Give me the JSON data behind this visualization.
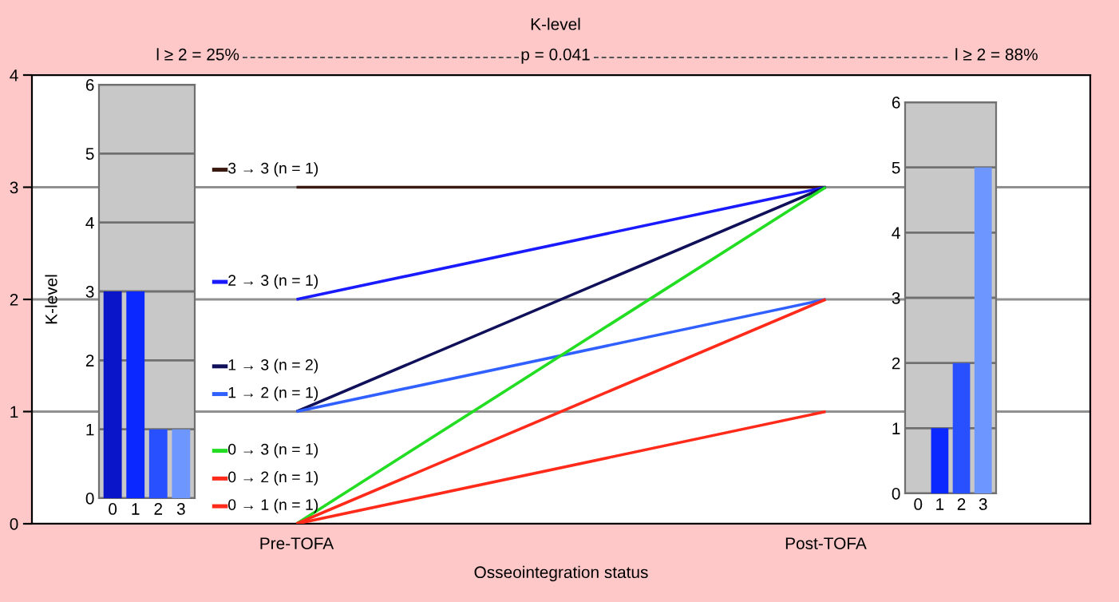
{
  "chart_data": [
    {
      "type": "line",
      "title": "K-level",
      "xlabel": "Osseointegration status",
      "ylabel": "K-level",
      "categories": [
        "Pre-TOFA",
        "Post-TOFA"
      ],
      "series": [
        {
          "name": "3 → 3 (n = 1)",
          "color": "#3a1a10",
          "values": [
            3,
            3
          ]
        },
        {
          "name": "2 → 3 (n = 1)",
          "color": "#1a1aff",
          "values": [
            2,
            3
          ]
        },
        {
          "name": "1 → 3 (n = 2)",
          "color": "#10105a",
          "values": [
            1,
            3
          ]
        },
        {
          "name": "1 → 2 (n = 1)",
          "color": "#3060ff",
          "values": [
            1,
            2
          ]
        },
        {
          "name": "0 → 3 (n = 1)",
          "color": "#22dd22",
          "values": [
            0,
            3
          ]
        },
        {
          "name": "0 → 2 (n = 1)",
          "color": "#ff2a1a",
          "values": [
            0,
            2
          ]
        },
        {
          "name": "0 → 1 (n = 1)",
          "color": "#ff2a1a",
          "values": [
            0,
            1
          ]
        }
      ],
      "ylim": [
        0,
        4
      ],
      "yticks": [
        0,
        1,
        2,
        3,
        4
      ],
      "grid": "y",
      "marker": "none",
      "line_style": "solid",
      "legend": "left",
      "annotations": [
        "l ≥ 2 = 25%",
        "p = 0.041",
        "l ≥ 2 = 88%"
      ]
    },
    {
      "type": "bar",
      "categories": [
        "0",
        "1",
        "2",
        "3"
      ],
      "values": [
        3,
        3,
        1,
        1
      ],
      "colors": [
        "#0a14c8",
        "#0a28ff",
        "#2850ff",
        "#6e96ff"
      ],
      "ylim": [
        0,
        6
      ],
      "yticks": [
        0,
        1,
        2,
        3,
        4,
        5,
        6
      ],
      "grid": "y"
    },
    {
      "type": "bar",
      "categories": [
        "0",
        "1",
        "2",
        "3"
      ],
      "values": [
        0,
        1,
        2,
        5
      ],
      "colors": [
        "#0a14c8",
        "#0a28ff",
        "#2850ff",
        "#6e96ff"
      ],
      "ylim": [
        0,
        6
      ],
      "yticks": [
        0,
        1,
        2,
        3,
        4,
        5,
        6
      ],
      "grid": "y"
    }
  ]
}
